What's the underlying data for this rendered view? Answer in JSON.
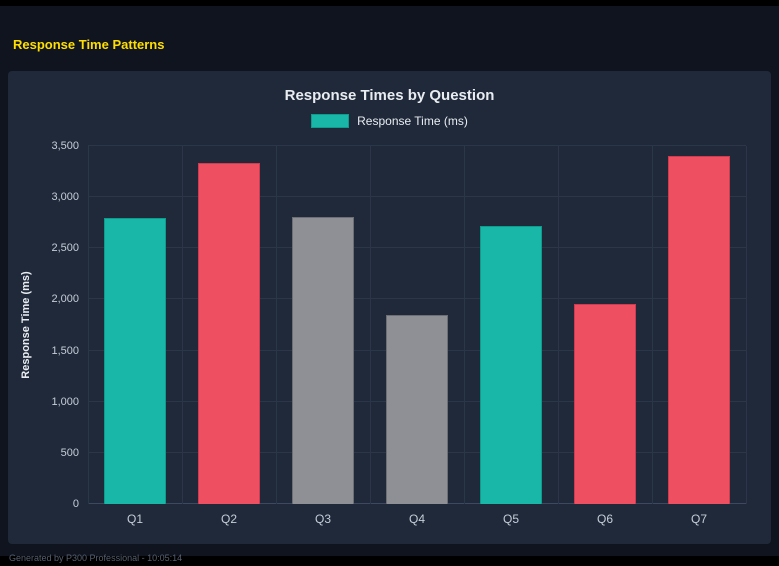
{
  "page": {
    "header_title": "Response Time Patterns",
    "footer_text": "Generated by P300 Professional - 10:05:14"
  },
  "chart_data": {
    "type": "bar",
    "title": "Response Times by Question",
    "legend": {
      "label": "Response Time (ms)",
      "swatch_color": "#18b7a7"
    },
    "legend_position": "top",
    "categories": [
      "Q1",
      "Q2",
      "Q3",
      "Q4",
      "Q5",
      "Q6",
      "Q7"
    ],
    "values": [
      2800,
      3330,
      2810,
      1850,
      2720,
      1960,
      3400
    ],
    "bar_colors": [
      "#18b7a7",
      "#ee5062",
      "#8f9095",
      "#8f9095",
      "#18b7a7",
      "#ee5062",
      "#ee5062"
    ],
    "bar_border_colors": [
      "#0f9c8e",
      "#cf3c50",
      "#6e6f74",
      "#6e6f74",
      "#0f9c8e",
      "#cf3c50",
      "#cf3c50"
    ],
    "xlabel": "",
    "ylabel": "Response Time (ms)",
    "ylim": [
      0,
      3500
    ],
    "yticks": [
      "0",
      "500",
      "1,000",
      "1,500",
      "2,000",
      "2,500",
      "3,000",
      "3,500"
    ],
    "grid": true,
    "colors": {
      "accent_yellow": "#ffdf00",
      "card_bg": "#1f2939",
      "page_bg": "#10141e"
    }
  }
}
